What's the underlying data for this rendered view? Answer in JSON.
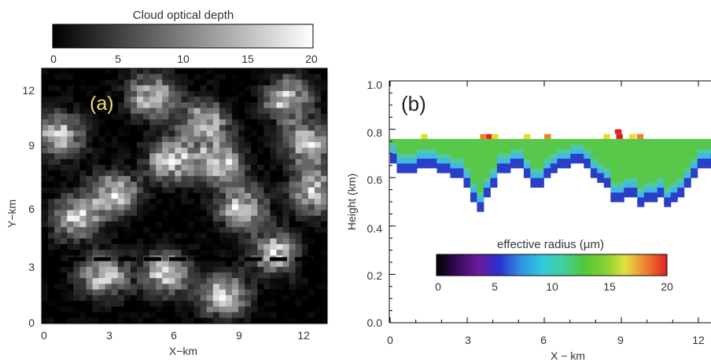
{
  "chart_data": [
    {
      "type": "heatmap",
      "panel_label": "(a)",
      "xlabel": "X−km",
      "ylabel": "Y−km",
      "xlim": [
        0,
        13
      ],
      "ylim": [
        0,
        13
      ],
      "xticks": [
        "0",
        "3",
        "6",
        "9",
        "12"
      ],
      "yticks": [
        "0",
        "3",
        "6",
        "9",
        "12"
      ],
      "grid_cells": [
        45,
        45
      ],
      "colorbar": {
        "label": "Cloud optical depth",
        "range": [
          0,
          20
        ],
        "ticks": [
          "0",
          "5",
          "10",
          "15",
          "20"
        ],
        "colors": [
          "#000000",
          "#ffffff"
        ]
      },
      "transect_line_y_km": 3.4,
      "bright_regions_xy_km": [
        [
          0.8,
          9.6
        ],
        [
          1.6,
          5.4
        ],
        [
          3.3,
          6.6
        ],
        [
          2.8,
          2.4
        ],
        [
          5.6,
          2.6
        ],
        [
          5.9,
          8.3
        ],
        [
          5.0,
          11.6
        ],
        [
          7.4,
          10.2
        ],
        [
          10.6,
          3.6
        ],
        [
          9.1,
          5.9
        ],
        [
          8.1,
          8.2
        ],
        [
          12.4,
          6.7
        ],
        [
          11.2,
          11.4
        ],
        [
          12.1,
          9.1
        ],
        [
          8.3,
          1.4
        ]
      ],
      "panel_label_color": "#e8e070"
    },
    {
      "type": "heatmap",
      "panel_label": "(b)",
      "xlabel": "X − km",
      "ylabel": "Height (km)",
      "xlim": [
        0,
        13
      ],
      "ylim": [
        0,
        1.0
      ],
      "xticks": [
        "0",
        "3",
        "6",
        "9",
        "12"
      ],
      "yticks": [
        "0.0",
        "0.2",
        "0.4",
        "0.6",
        "0.8",
        "1.0"
      ],
      "cloud_top_km": 0.76,
      "cloud_base_profile": [
        {
          "x": 0.0,
          "base": 0.7
        },
        {
          "x": 0.3,
          "base": 0.62
        },
        {
          "x": 1.0,
          "base": 0.64
        },
        {
          "x": 2.0,
          "base": 0.63
        },
        {
          "x": 2.8,
          "base": 0.6
        },
        {
          "x": 3.2,
          "base": 0.52
        },
        {
          "x": 3.5,
          "base": 0.47
        },
        {
          "x": 3.9,
          "base": 0.53
        },
        {
          "x": 4.3,
          "base": 0.62
        },
        {
          "x": 4.9,
          "base": 0.64
        },
        {
          "x": 5.4,
          "base": 0.6
        },
        {
          "x": 5.7,
          "base": 0.52
        },
        {
          "x": 6.0,
          "base": 0.6
        },
        {
          "x": 6.5,
          "base": 0.64
        },
        {
          "x": 7.3,
          "base": 0.66
        },
        {
          "x": 7.8,
          "base": 0.62
        },
        {
          "x": 8.4,
          "base": 0.56
        },
        {
          "x": 8.8,
          "base": 0.49
        },
        {
          "x": 9.4,
          "base": 0.53
        },
        {
          "x": 9.8,
          "base": 0.47
        },
        {
          "x": 10.4,
          "base": 0.52
        },
        {
          "x": 10.9,
          "base": 0.47
        },
        {
          "x": 11.3,
          "base": 0.52
        },
        {
          "x": 11.8,
          "base": 0.6
        },
        {
          "x": 12.3,
          "base": 0.64
        },
        {
          "x": 12.5,
          "base": 0.66
        }
      ],
      "cloud_gaps_km": [
        [
          7.2,
          7.4
        ]
      ],
      "colorbar": {
        "label": "effective radius (μm)",
        "range": [
          0,
          20
        ],
        "ticks": [
          "0",
          "5",
          "10",
          "15",
          "20"
        ],
        "colors": [
          "#000000",
          "#3a0a5a",
          "#6a1a9a",
          "#2a30d0",
          "#3090e0",
          "#30c8e0",
          "#40d0a0",
          "#50c840",
          "#80d030",
          "#e0e040",
          "#f08030",
          "#e02020"
        ]
      },
      "colors": {
        "base": "#2a3ec8",
        "lower": "#40b8e8",
        "middle": "#50c8a0",
        "core": "#58c84a",
        "top_yellow": "#e8d830",
        "top_orange": "#f08020",
        "top_red": "#e02020"
      }
    }
  ]
}
